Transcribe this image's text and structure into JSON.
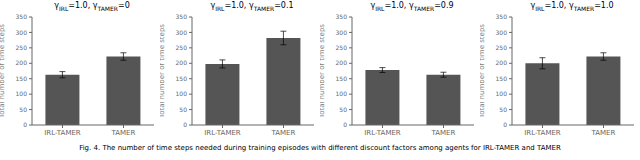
{
  "chart_data": [
    {
      "type": "bar",
      "title": "γIRL=1.0, γTAMER=0",
      "categories": [
        "IRL-TAMER",
        "TAMER"
      ],
      "values": [
        163,
        222
      ],
      "errors": [
        10,
        12
      ],
      "color": "#555555",
      "ylim": [
        0,
        350
      ],
      "yticks": [
        0,
        50,
        100,
        150,
        200,
        250,
        300,
        350
      ],
      "ylabel": "Total number of time steps"
    },
    {
      "type": "bar",
      "title": "γIRL=1.0, γTAMER=0.1",
      "categories": [
        "IRL-TAMER",
        "TAMER"
      ],
      "values": [
        198,
        282
      ],
      "errors": [
        13,
        22
      ],
      "color": "#555555",
      "ylim": [
        0,
        350
      ],
      "yticks": [
        0,
        50,
        100,
        150,
        200,
        250,
        300,
        350
      ],
      "ylabel": "Total number of time steps"
    },
    {
      "type": "bar",
      "title": "γIRL=1.0, γTAMER=0.9",
      "categories": [
        "IRL-TAMER",
        "TAMER"
      ],
      "values": [
        178,
        163
      ],
      "errors": [
        8,
        8
      ],
      "color": "#555555",
      "ylim": [
        0,
        350
      ],
      "yticks": [
        0,
        50,
        100,
        150,
        200,
        250,
        300,
        350
      ],
      "ylabel": "Total number of time steps"
    },
    {
      "type": "bar",
      "title": "γIRL=1.0, γTAMER=1.0",
      "categories": [
        "IRL-TAMER",
        "TAMER"
      ],
      "values": [
        200,
        222
      ],
      "errors": [
        18,
        12
      ],
      "color": "#555555",
      "ylim": [
        0,
        350
      ],
      "yticks": [
        0,
        50,
        100,
        150,
        200,
        250,
        300,
        350
      ],
      "ylabel": "Total number of time steps"
    }
  ],
  "caption": "Fig. 4.  The number of time steps needed during training episodes with different discount factors among agents for IRL-TAMER and TAMER"
}
